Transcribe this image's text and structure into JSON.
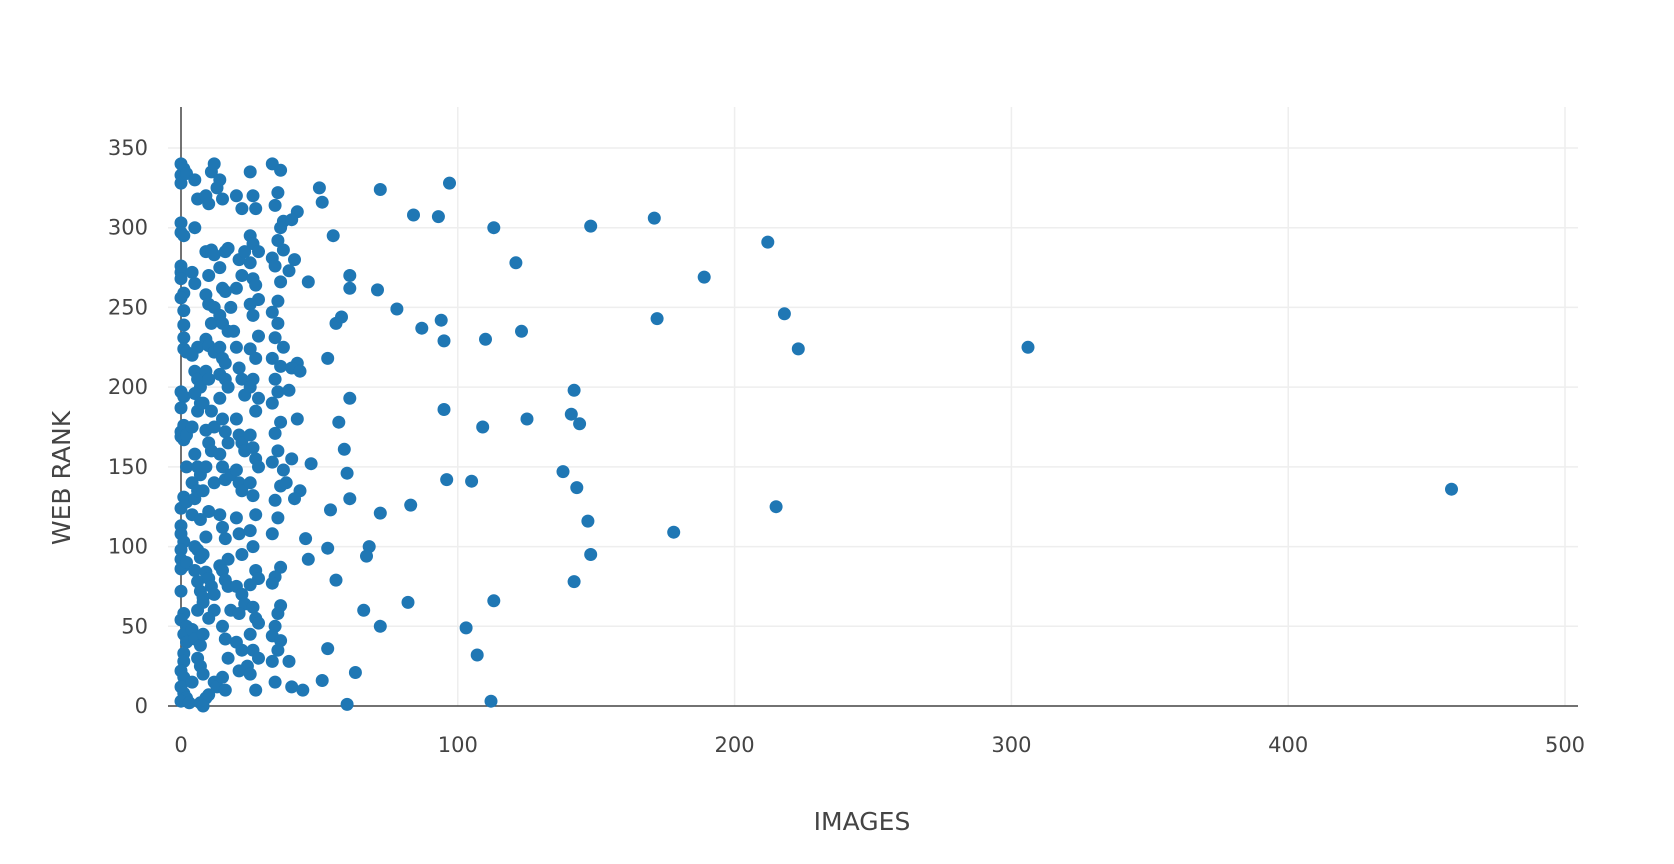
{
  "chart_data": {
    "type": "scatter",
    "xlabel": "IMAGES",
    "ylabel": "WEB RANK",
    "xlim": [
      -5,
      505
    ],
    "ylim": [
      -8,
      375
    ],
    "x_ticks": [
      0,
      100,
      200,
      300,
      400,
      500
    ],
    "y_ticks": [
      0,
      50,
      100,
      150,
      200,
      250,
      300,
      350
    ],
    "grid": true,
    "marker_color": "#1f77b4",
    "points": [
      [
        0,
        340
      ],
      [
        0,
        333
      ],
      [
        0,
        328
      ],
      [
        1,
        337
      ],
      [
        2,
        334
      ],
      [
        0,
        303
      ],
      [
        0,
        297
      ],
      [
        1,
        295
      ],
      [
        0,
        276
      ],
      [
        0,
        272
      ],
      [
        0,
        268
      ],
      [
        1,
        259
      ],
      [
        0,
        256
      ],
      [
        1,
        248
      ],
      [
        1,
        239
      ],
      [
        1,
        231
      ],
      [
        1,
        224
      ],
      [
        2,
        222
      ],
      [
        0,
        197
      ],
      [
        1,
        194
      ],
      [
        0,
        187
      ],
      [
        0,
        172
      ],
      [
        0,
        169
      ],
      [
        1,
        167
      ],
      [
        1,
        176
      ],
      [
        2,
        170
      ],
      [
        2,
        150
      ],
      [
        0,
        124
      ],
      [
        1,
        131
      ],
      [
        2,
        128
      ],
      [
        0,
        113
      ],
      [
        0,
        108
      ],
      [
        1,
        103
      ],
      [
        0,
        98
      ],
      [
        0,
        92
      ],
      [
        1,
        88
      ],
      [
        0,
        86
      ],
      [
        2,
        90
      ],
      [
        0,
        72
      ],
      [
        1,
        58
      ],
      [
        0,
        54
      ],
      [
        2,
        50
      ],
      [
        1,
        45
      ],
      [
        2,
        40
      ],
      [
        1,
        33
      ],
      [
        1,
        28
      ],
      [
        0,
        22
      ],
      [
        1,
        18
      ],
      [
        0,
        12
      ],
      [
        1,
        8
      ],
      [
        2,
        5
      ],
      [
        0,
        3
      ],
      [
        3,
        2
      ],
      [
        4,
        15
      ],
      [
        5,
        300
      ],
      [
        5,
        330
      ],
      [
        6,
        318
      ],
      [
        4,
        272
      ],
      [
        5,
        265
      ],
      [
        6,
        225
      ],
      [
        4,
        220
      ],
      [
        5,
        210
      ],
      [
        6,
        205
      ],
      [
        7,
        200
      ],
      [
        5,
        196
      ],
      [
        6,
        185
      ],
      [
        7,
        190
      ],
      [
        4,
        175
      ],
      [
        5,
        158
      ],
      [
        6,
        150
      ],
      [
        7,
        145
      ],
      [
        4,
        140
      ],
      [
        5,
        130
      ],
      [
        6,
        135
      ],
      [
        4,
        120
      ],
      [
        7,
        117
      ],
      [
        5,
        100
      ],
      [
        6,
        98
      ],
      [
        7,
        93
      ],
      [
        5,
        85
      ],
      [
        6,
        78
      ],
      [
        7,
        72
      ],
      [
        8,
        68
      ],
      [
        6,
        60
      ],
      [
        4,
        48
      ],
      [
        5,
        42
      ],
      [
        7,
        38
      ],
      [
        8,
        45
      ],
      [
        6,
        30
      ],
      [
        7,
        25
      ],
      [
        8,
        20
      ],
      [
        9,
        5
      ],
      [
        7,
        2
      ],
      [
        8,
        0
      ],
      [
        10,
        7
      ],
      [
        9,
        320
      ],
      [
        10,
        315
      ],
      [
        11,
        335
      ],
      [
        12,
        340
      ],
      [
        13,
        325
      ],
      [
        9,
        285
      ],
      [
        11,
        286
      ],
      [
        12,
        283
      ],
      [
        10,
        270
      ],
      [
        9,
        258
      ],
      [
        10,
        252
      ],
      [
        12,
        250
      ],
      [
        11,
        240
      ],
      [
        9,
        230
      ],
      [
        10,
        226
      ],
      [
        12,
        222
      ],
      [
        9,
        210
      ],
      [
        10,
        205
      ],
      [
        8,
        190
      ],
      [
        11,
        185
      ],
      [
        9,
        173
      ],
      [
        12,
        175
      ],
      [
        10,
        165
      ],
      [
        11,
        160
      ],
      [
        9,
        150
      ],
      [
        12,
        140
      ],
      [
        8,
        135
      ],
      [
        10,
        122
      ],
      [
        9,
        106
      ],
      [
        8,
        95
      ],
      [
        9,
        84
      ],
      [
        10,
        80
      ],
      [
        11,
        75
      ],
      [
        12,
        70
      ],
      [
        8,
        65
      ],
      [
        12,
        60
      ],
      [
        10,
        55
      ],
      [
        12,
        15
      ],
      [
        13,
        12
      ],
      [
        14,
        330
      ],
      [
        15,
        318
      ],
      [
        16,
        285
      ],
      [
        17,
        287
      ],
      [
        14,
        275
      ],
      [
        15,
        262
      ],
      [
        16,
        260
      ],
      [
        18,
        250
      ],
      [
        14,
        245
      ],
      [
        15,
        240
      ],
      [
        17,
        235
      ],
      [
        14,
        225
      ],
      [
        15,
        218
      ],
      [
        16,
        215
      ],
      [
        14,
        208
      ],
      [
        16,
        205
      ],
      [
        17,
        200
      ],
      [
        14,
        193
      ],
      [
        15,
        180
      ],
      [
        16,
        172
      ],
      [
        17,
        165
      ],
      [
        14,
        158
      ],
      [
        15,
        150
      ],
      [
        16,
        142
      ],
      [
        18,
        145
      ],
      [
        14,
        120
      ],
      [
        15,
        112
      ],
      [
        16,
        105
      ],
      [
        17,
        92
      ],
      [
        14,
        88
      ],
      [
        15,
        85
      ],
      [
        16,
        79
      ],
      [
        17,
        75
      ],
      [
        18,
        60
      ],
      [
        15,
        50
      ],
      [
        16,
        42
      ],
      [
        17,
        30
      ],
      [
        15,
        18
      ],
      [
        16,
        10
      ],
      [
        20,
        320
      ],
      [
        22,
        312
      ],
      [
        21,
        280
      ],
      [
        23,
        285
      ],
      [
        22,
        270
      ],
      [
        20,
        262
      ],
      [
        19,
        235
      ],
      [
        20,
        225
      ],
      [
        21,
        212
      ],
      [
        22,
        205
      ],
      [
        23,
        195
      ],
      [
        20,
        180
      ],
      [
        21,
        170
      ],
      [
        22,
        165
      ],
      [
        23,
        160
      ],
      [
        20,
        148
      ],
      [
        21,
        140
      ],
      [
        22,
        135
      ],
      [
        20,
        118
      ],
      [
        21,
        108
      ],
      [
        22,
        95
      ],
      [
        20,
        75
      ],
      [
        22,
        70
      ],
      [
        23,
        64
      ],
      [
        21,
        58
      ],
      [
        20,
        40
      ],
      [
        22,
        35
      ],
      [
        24,
        25
      ],
      [
        21,
        22
      ],
      [
        25,
        335
      ],
      [
        26,
        320
      ],
      [
        27,
        312
      ],
      [
        25,
        295
      ],
      [
        26,
        290
      ],
      [
        28,
        285
      ],
      [
        25,
        278
      ],
      [
        26,
        268
      ],
      [
        27,
        264
      ],
      [
        28,
        255
      ],
      [
        25,
        252
      ],
      [
        26,
        245
      ],
      [
        28,
        232
      ],
      [
        25,
        224
      ],
      [
        27,
        218
      ],
      [
        26,
        205
      ],
      [
        25,
        200
      ],
      [
        28,
        193
      ],
      [
        27,
        185
      ],
      [
        25,
        170
      ],
      [
        26,
        162
      ],
      [
        27,
        155
      ],
      [
        28,
        150
      ],
      [
        25,
        140
      ],
      [
        26,
        132
      ],
      [
        27,
        120
      ],
      [
        25,
        110
      ],
      [
        26,
        100
      ],
      [
        27,
        85
      ],
      [
        28,
        80
      ],
      [
        25,
        76
      ],
      [
        26,
        62
      ],
      [
        27,
        55
      ],
      [
        28,
        52
      ],
      [
        25,
        45
      ],
      [
        26,
        35
      ],
      [
        28,
        30
      ],
      [
        25,
        20
      ],
      [
        27,
        10
      ],
      [
        33,
        340
      ],
      [
        36,
        336
      ],
      [
        35,
        322
      ],
      [
        34,
        314
      ],
      [
        37,
        304
      ],
      [
        36,
        300
      ],
      [
        35,
        292
      ],
      [
        37,
        286
      ],
      [
        33,
        281
      ],
      [
        34,
        276
      ],
      [
        36,
        266
      ],
      [
        35,
        254
      ],
      [
        33,
        247
      ],
      [
        35,
        240
      ],
      [
        34,
        231
      ],
      [
        37,
        225
      ],
      [
        33,
        218
      ],
      [
        36,
        213
      ],
      [
        34,
        205
      ],
      [
        35,
        197
      ],
      [
        33,
        190
      ],
      [
        36,
        178
      ],
      [
        34,
        171
      ],
      [
        35,
        160
      ],
      [
        33,
        153
      ],
      [
        37,
        148
      ],
      [
        36,
        138
      ],
      [
        34,
        129
      ],
      [
        35,
        118
      ],
      [
        33,
        108
      ],
      [
        36,
        87
      ],
      [
        34,
        81
      ],
      [
        33,
        77
      ],
      [
        36,
        63
      ],
      [
        35,
        58
      ],
      [
        34,
        50
      ],
      [
        33,
        44
      ],
      [
        36,
        41
      ],
      [
        35,
        35
      ],
      [
        33,
        28
      ],
      [
        34,
        15
      ],
      [
        42,
        310
      ],
      [
        40,
        305
      ],
      [
        41,
        280
      ],
      [
        39,
        273
      ],
      [
        42,
        215
      ],
      [
        40,
        212
      ],
      [
        43,
        210
      ],
      [
        39,
        198
      ],
      [
        42,
        180
      ],
      [
        40,
        155
      ],
      [
        38,
        140
      ],
      [
        43,
        135
      ],
      [
        41,
        130
      ],
      [
        39,
        28
      ],
      [
        40,
        12
      ],
      [
        46,
        266
      ],
      [
        47,
        152
      ],
      [
        45,
        105
      ],
      [
        46,
        92
      ],
      [
        44,
        10
      ],
      [
        50,
        325
      ],
      [
        51,
        316
      ],
      [
        55,
        295
      ],
      [
        53,
        218
      ],
      [
        56,
        240
      ],
      [
        58,
        244
      ],
      [
        61,
        270
      ],
      [
        61,
        262
      ],
      [
        57,
        178
      ],
      [
        59,
        161
      ],
      [
        60,
        146
      ],
      [
        61,
        130
      ],
      [
        54,
        123
      ],
      [
        61,
        193
      ],
      [
        53,
        99
      ],
      [
        56,
        79
      ],
      [
        53,
        36
      ],
      [
        51,
        16
      ],
      [
        60,
        1
      ],
      [
        63,
        21
      ],
      [
        66,
        60
      ],
      [
        68,
        100
      ],
      [
        67,
        94
      ],
      [
        71,
        261
      ],
      [
        72,
        324
      ],
      [
        72,
        121
      ],
      [
        72,
        50
      ],
      [
        78,
        249
      ],
      [
        83,
        126
      ],
      [
        82,
        65
      ],
      [
        84,
        308
      ],
      [
        87,
        237
      ],
      [
        93,
        307
      ],
      [
        94,
        242
      ],
      [
        95,
        229
      ],
      [
        95,
        186
      ],
      [
        97,
        328
      ],
      [
        96,
        142
      ],
      [
        105,
        141
      ],
      [
        103,
        49
      ],
      [
        107,
        32
      ],
      [
        109,
        175
      ],
      [
        110,
        230
      ],
      [
        113,
        300
      ],
      [
        113,
        66
      ],
      [
        112,
        3
      ],
      [
        121,
        278
      ],
      [
        123,
        235
      ],
      [
        125,
        180
      ],
      [
        138,
        147
      ],
      [
        141,
        183
      ],
      [
        142,
        198
      ],
      [
        143,
        137
      ],
      [
        144,
        177
      ],
      [
        147,
        116
      ],
      [
        148,
        301
      ],
      [
        148,
        95
      ],
      [
        142,
        78
      ],
      [
        171,
        306
      ],
      [
        172,
        243
      ],
      [
        178,
        109
      ],
      [
        189,
        269
      ],
      [
        212,
        291
      ],
      [
        218,
        246
      ],
      [
        223,
        224
      ],
      [
        215,
        125
      ],
      [
        306,
        225
      ],
      [
        459,
        136
      ]
    ]
  }
}
